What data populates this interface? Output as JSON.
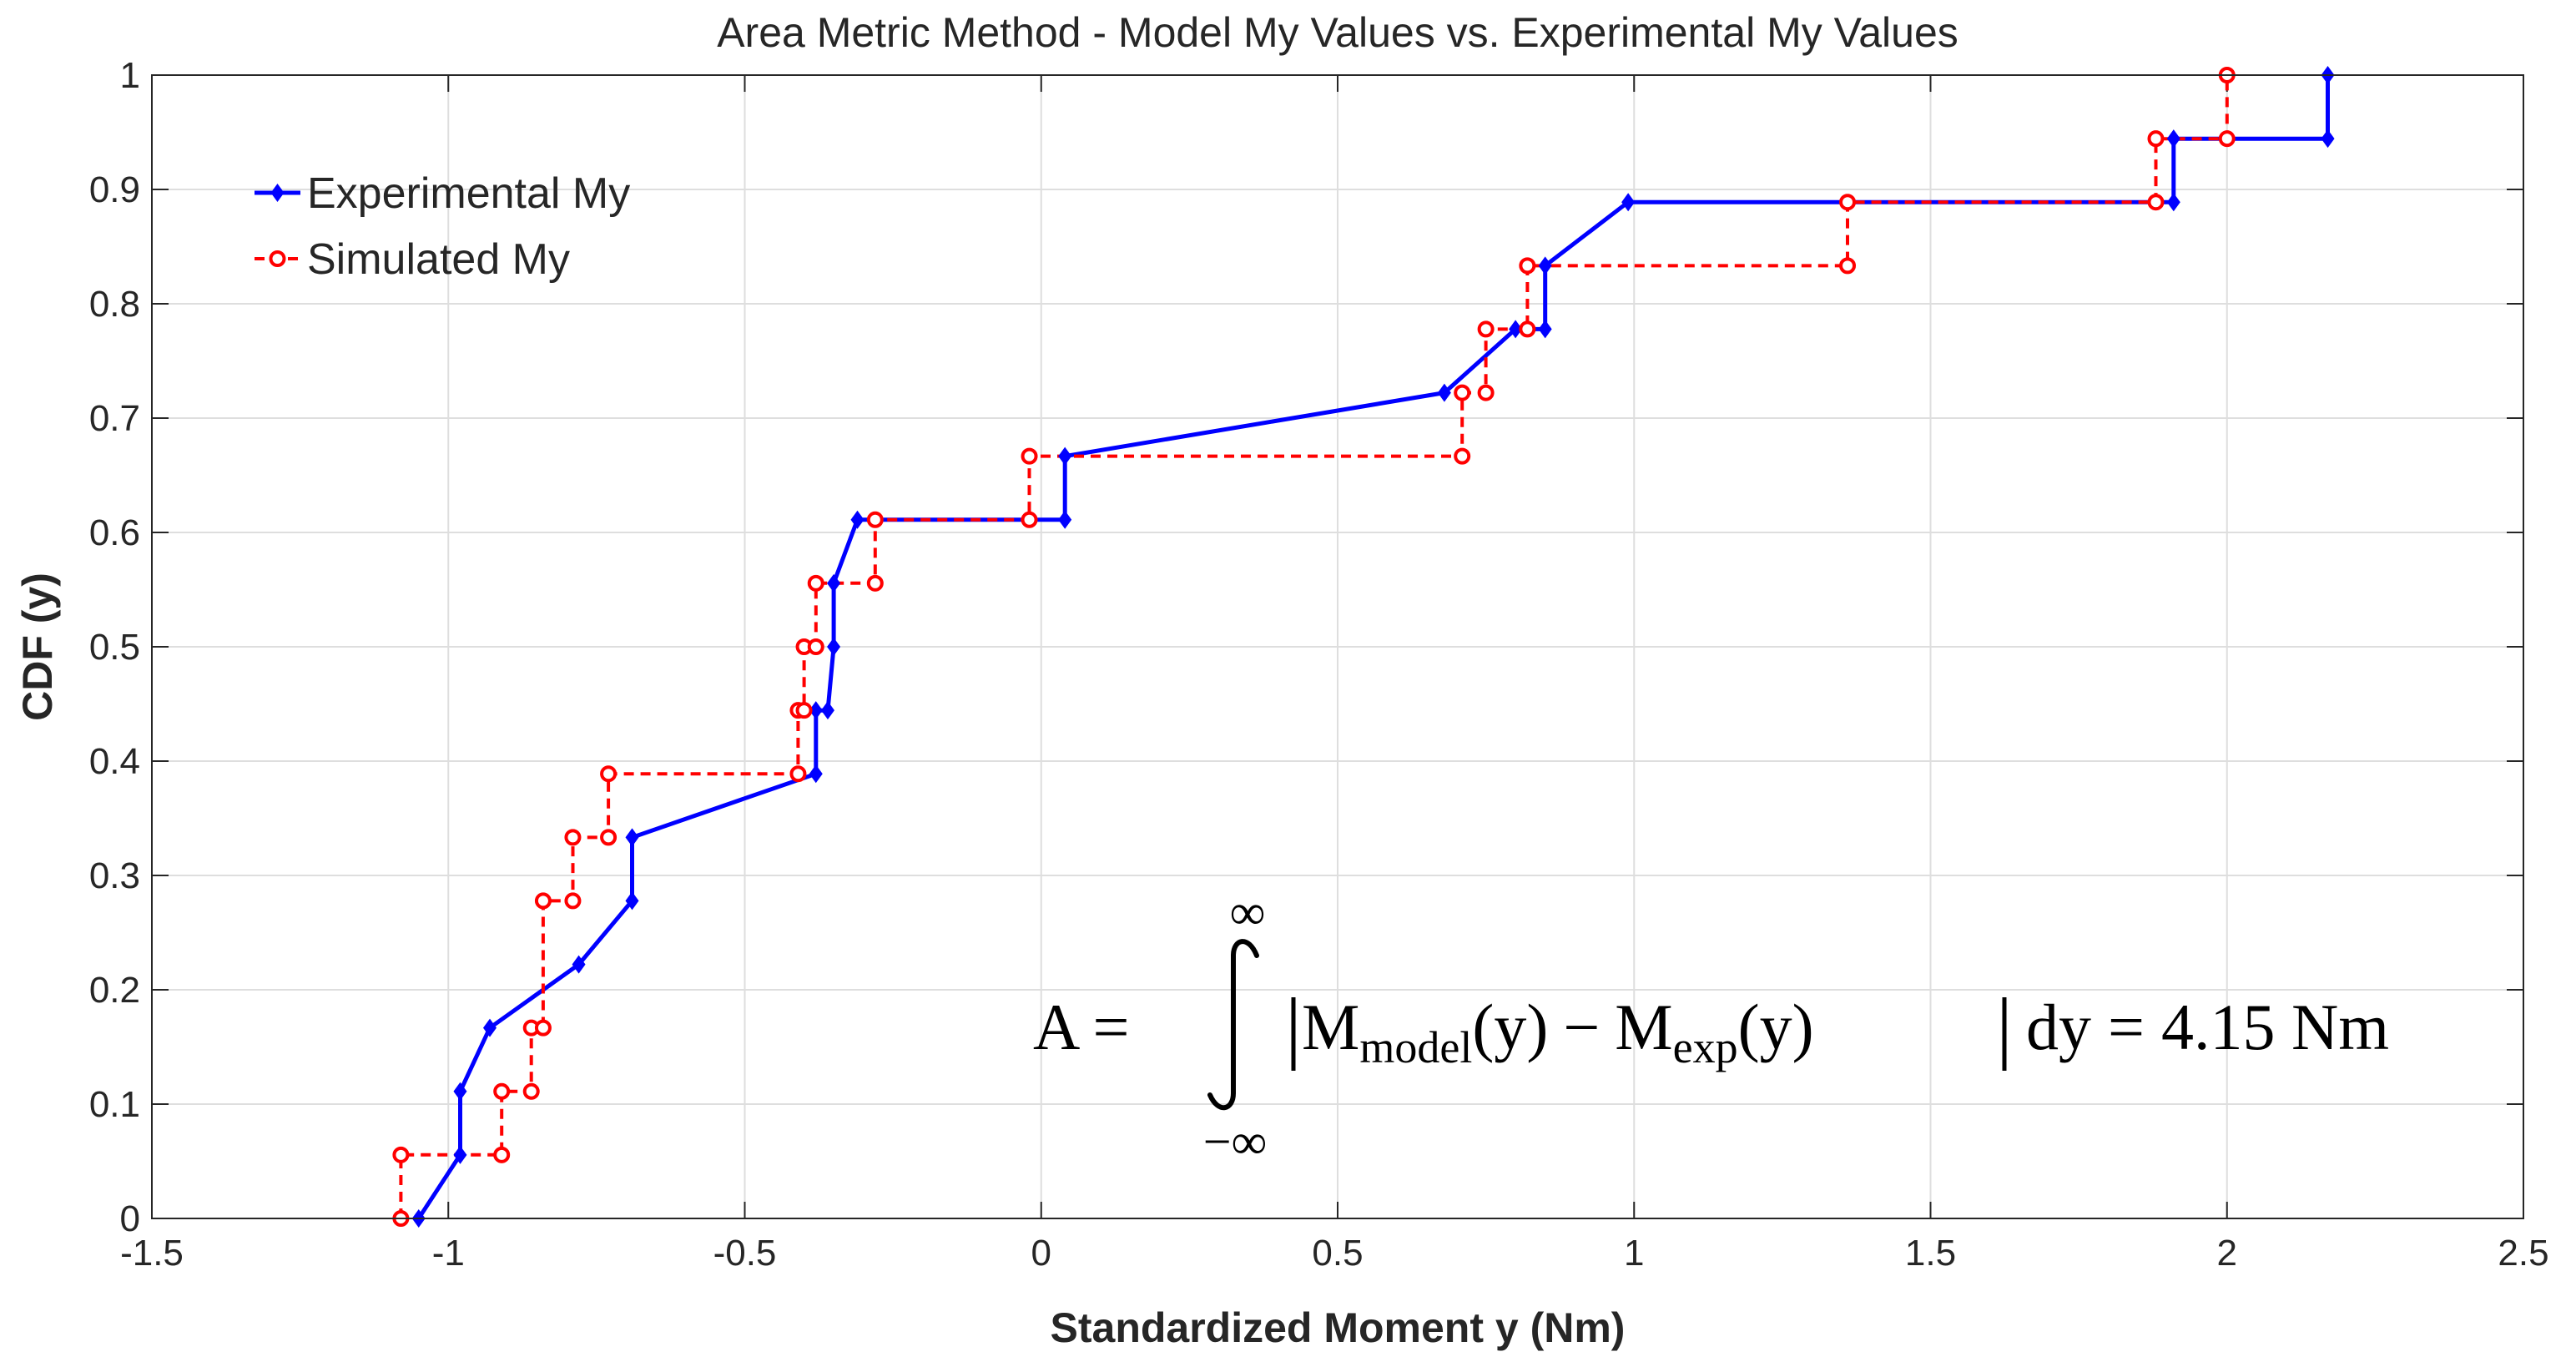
{
  "chart_data": {
    "type": "line",
    "style": "step-cdf",
    "title": "Area Metric Method - Model  My Values vs. Experimental My Values",
    "xlabel": "Standardized Moment y (Nm)",
    "ylabel": "CDF (y)",
    "xlim": [
      -1.5,
      2.5
    ],
    "ylim": [
      0,
      1
    ],
    "xticks": [
      -1.5,
      -1,
      -0.5,
      0,
      0.5,
      1,
      1.5,
      2,
      2.5
    ],
    "xtick_labels": [
      "-1.5",
      "-1",
      "-0.5",
      "0",
      "0.5",
      "1",
      "1.5",
      "2",
      "2.5"
    ],
    "yticks": [
      0,
      0.1,
      0.2,
      0.3,
      0.4,
      0.5,
      0.6,
      0.7,
      0.8,
      0.9,
      1
    ],
    "ytick_labels": [
      "0",
      "0.1",
      "0.2",
      "0.3",
      "0.4",
      "0.5",
      "0.6",
      "0.7",
      "0.8",
      "0.9",
      "1"
    ],
    "legend_position": "top-left",
    "series": [
      {
        "name": "Experimental My",
        "color": "#0000ff",
        "line": "solid",
        "marker": "diamond",
        "x": [
          -1.05,
          -0.98,
          -0.98,
          -0.93,
          -0.78,
          -0.69,
          -0.69,
          -0.38,
          -0.38,
          -0.36,
          -0.35,
          -0.35,
          -0.31,
          0.04,
          0.04,
          0.68,
          0.8,
          0.85,
          0.85,
          0.99,
          1.91,
          1.91,
          2.17,
          2.17
        ],
        "y": [
          0,
          0.0556,
          0.1111,
          0.1667,
          0.2222,
          0.2778,
          0.3333,
          0.3889,
          0.4444,
          0.4444,
          0.5,
          0.5556,
          0.6111,
          0.6111,
          0.6667,
          0.7222,
          0.7778,
          0.7778,
          0.8333,
          0.8889,
          0.8889,
          0.9444,
          0.9444,
          1
        ]
      },
      {
        "name": "Simulated My",
        "color": "#ff0000",
        "line": "dashed",
        "marker": "circle",
        "x": [
          -1.08,
          -1.08,
          -0.91,
          -0.91,
          -0.86,
          -0.86,
          -0.84,
          -0.84,
          -0.79,
          -0.79,
          -0.73,
          -0.73,
          -0.41,
          -0.41,
          -0.4,
          -0.4,
          -0.38,
          -0.38,
          -0.28,
          -0.28,
          -0.02,
          -0.02,
          0.71,
          0.71,
          0.75,
          0.75,
          0.82,
          0.82,
          1.36,
          1.36,
          1.88,
          1.88,
          2.0,
          2.0
        ],
        "y": [
          0,
          0.0556,
          0.0556,
          0.1111,
          0.1111,
          0.1667,
          0.1667,
          0.2778,
          0.2778,
          0.3333,
          0.3333,
          0.3889,
          0.3889,
          0.4444,
          0.4444,
          0.5,
          0.5,
          0.5556,
          0.5556,
          0.6111,
          0.6111,
          0.6667,
          0.6667,
          0.7222,
          0.7222,
          0.7778,
          0.7778,
          0.8333,
          0.8333,
          0.8889,
          0.8889,
          0.9444,
          0.9444,
          1
        ]
      }
    ],
    "annotation": {
      "lhs": "A =",
      "upper_limit": "∞",
      "lower_limit": "−∞",
      "m_model": "M",
      "model_sub": "model",
      "m_exp": "M",
      "exp_sub": "exp",
      "var": "(y)",
      "minus": "−",
      "dy": "dy",
      "equals": "=",
      "result": "4.15 Nm"
    }
  }
}
